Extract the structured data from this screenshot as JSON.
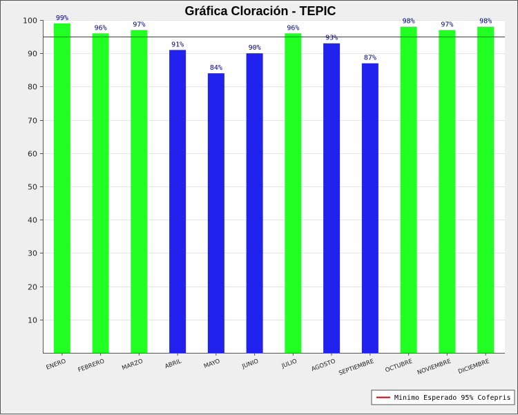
{
  "chart_data": {
    "type": "bar",
    "title": "Gráfica Cloración - TEPIC",
    "xlabel": "",
    "ylabel": "",
    "categories": [
      "ENERO",
      "FEBRERO",
      "MARZO",
      "ABRIL",
      "MAYO",
      "JUNIO",
      "JULIO",
      "AGOSTO",
      "SEPTIEMBRE",
      "OCTUBRE",
      "NOVIEMBRE",
      "DICIEMBRE"
    ],
    "values": [
      99,
      96,
      97,
      91,
      84,
      90,
      96,
      93,
      87,
      98,
      97,
      98
    ],
    "value_labels": [
      "99%",
      "96%",
      "97%",
      "91%",
      "84%",
      "90%",
      "96%",
      "93%",
      "87%",
      "98%",
      "97%",
      "98%"
    ],
    "ylim": [
      0,
      100
    ],
    "yticks": [
      10,
      20,
      30,
      40,
      50,
      60,
      70,
      80,
      90,
      100
    ],
    "grid": true,
    "threshold": {
      "value": 95,
      "label": "Minimo Esperado 95% Cofepris",
      "color": "#cc0000"
    },
    "colors": {
      "at_or_above_threshold": "#22ff22",
      "below_threshold": "#2222ee",
      "value_label": "#000088"
    },
    "legend_placement": "bottom-right"
  }
}
